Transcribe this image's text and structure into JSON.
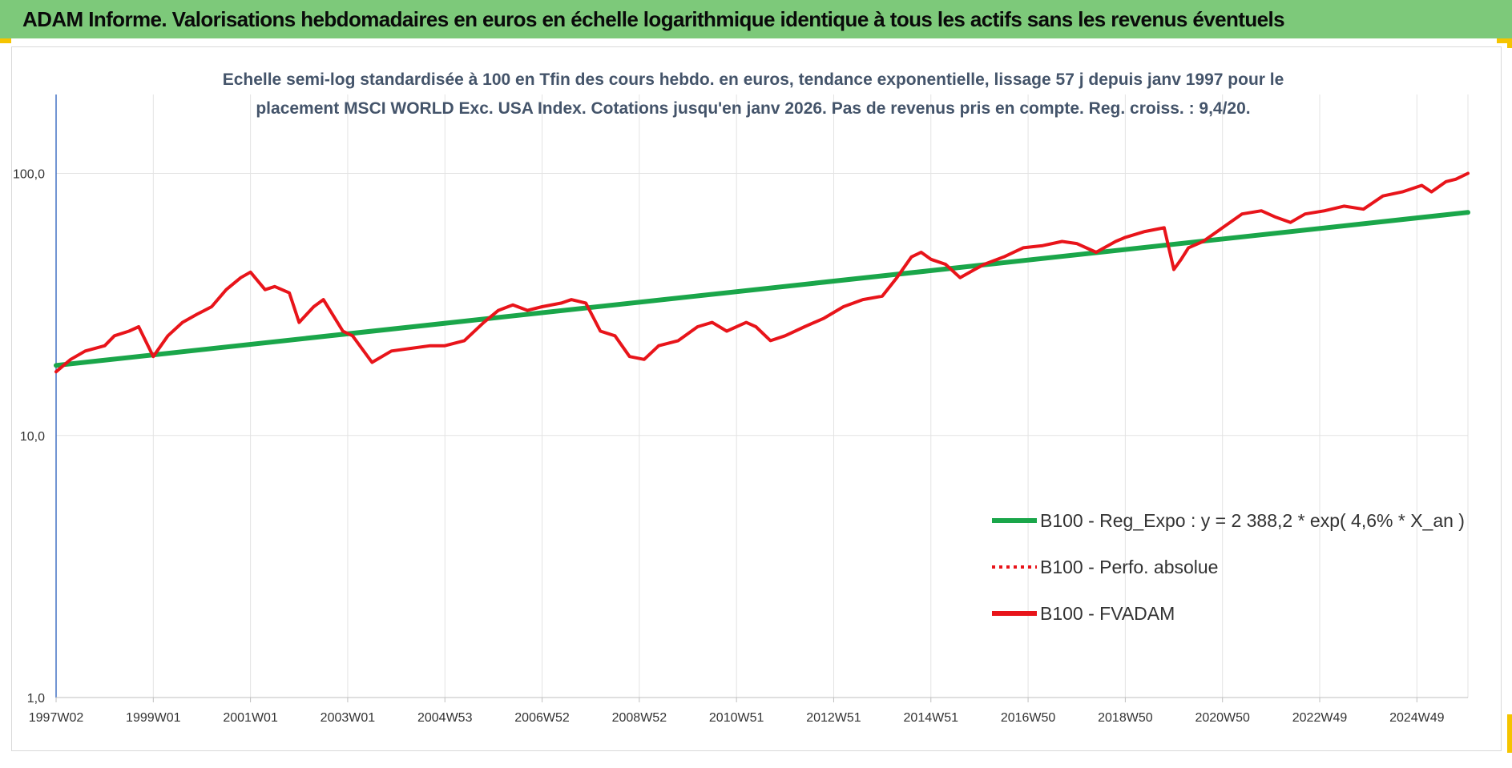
{
  "banner": {
    "title": "ADAM Informe. Valorisations hebdomadaires en euros en échelle logarithmique identique à tous les actifs sans les revenus éventuels"
  },
  "colors": {
    "banner_bg": "#7dc97a",
    "accent_corner": "#f5c400",
    "trend": "#1aa64a",
    "fvadam": "#e8141a",
    "title_text": "#44546a",
    "grid": "#e3e3e3",
    "y_axis": "#4472c4"
  },
  "chart_data": {
    "type": "line",
    "title_lines": [
      "Echelle semi-log standardisée à 100 en Tfin des cours hebdo. en euros, tendance exponentielle, lissage 57 j depuis janv 1997 pour le",
      "placement MSCI WORLD Exc. USA Index. Cotations jusqu'en janv 2026.  Pas de revenus pris en compte. Reg. croiss. : 9,4/20."
    ],
    "y_scale": "log",
    "ylim": [
      1,
      200
    ],
    "y_ticks": [
      1,
      10,
      100
    ],
    "y_tick_labels": [
      "1,0",
      "10,0",
      "100,0"
    ],
    "xlim": [
      1997.0,
      2026.05
    ],
    "x_ticks": [
      1997.0,
      1999.0,
      2001.0,
      2003.0,
      2005.0,
      2007.0,
      2009.0,
      2011.0,
      2013.0,
      2015.0,
      2017.0,
      2019.0,
      2021.0,
      2023.0,
      2025.0
    ],
    "x_tick_labels": [
      "1997W02",
      "1999W01",
      "2001W01",
      "2003W01",
      "2004W53",
      "2006W52",
      "2008W52",
      "2010W51",
      "2012W51",
      "2014W51",
      "2016W50",
      "2018W50",
      "2020W50",
      "2022W49",
      "2024W49"
    ],
    "grid": true,
    "legend_position": "bottom-right",
    "series": [
      {
        "name": "B100 - Reg_Expo : y = 2 388,2 * exp( 4,6% *  X_an )",
        "style": "solid",
        "color": "#1aa64a",
        "x": [
          1997.0,
          2026.05
        ],
        "y": [
          18.5,
          71.0
        ]
      },
      {
        "name": "B100 - Perfo. absolue",
        "style": "dotted",
        "color": "#e8141a",
        "x": [],
        "y": []
      },
      {
        "name": "B100 - FVADAM",
        "style": "solid",
        "color": "#e8141a",
        "x": [
          1997.0,
          1997.3,
          1997.6,
          1998.0,
          1998.2,
          1998.5,
          1998.7,
          1999.0,
          1999.3,
          1999.6,
          1999.9,
          2000.2,
          2000.5,
          2000.8,
          2001.0,
          2001.3,
          2001.5,
          2001.8,
          2002.0,
          2002.3,
          2002.5,
          2002.9,
          2003.1,
          2003.5,
          2003.9,
          2004.3,
          2004.7,
          2005.0,
          2005.4,
          2005.8,
          2006.1,
          2006.4,
          2006.7,
          2007.0,
          2007.4,
          2007.6,
          2007.9,
          2008.2,
          2008.5,
          2008.8,
          2009.1,
          2009.4,
          2009.8,
          2010.2,
          2010.5,
          2010.8,
          2011.2,
          2011.4,
          2011.7,
          2012.0,
          2012.4,
          2012.8,
          2013.2,
          2013.6,
          2014.0,
          2014.3,
          2014.6,
          2014.8,
          2015.0,
          2015.3,
          2015.6,
          2015.9,
          2016.1,
          2016.5,
          2016.9,
          2017.3,
          2017.7,
          2018.0,
          2018.4,
          2018.8,
          2019.0,
          2019.4,
          2019.8,
          2020.0,
          2020.15,
          2020.3,
          2020.6,
          2021.0,
          2021.4,
          2021.8,
          2022.1,
          2022.4,
          2022.7,
          2023.1,
          2023.5,
          2023.9,
          2024.3,
          2024.7,
          2025.1,
          2025.3,
          2025.6,
          2025.8,
          2026.05
        ],
        "y": [
          17.5,
          19.5,
          21,
          22,
          24,
          25,
          26,
          20,
          24,
          27,
          29,
          31,
          36,
          40,
          42,
          36,
          37,
          35,
          27,
          31,
          33,
          25,
          24,
          19,
          21,
          21.5,
          22,
          22,
          23,
          27,
          30,
          31.5,
          30,
          31,
          32,
          33,
          32,
          25,
          24,
          20,
          19.5,
          22,
          23,
          26,
          27,
          25,
          27,
          26,
          23,
          24,
          26,
          28,
          31,
          33,
          34,
          40,
          48,
          50,
          47,
          45,
          40,
          43,
          45,
          48,
          52,
          53,
          55,
          54,
          50,
          55,
          57,
          60,
          62,
          43,
          47,
          52,
          55,
          62,
          70,
          72,
          68,
          65,
          70,
          72,
          75,
          73,
          82,
          85,
          90,
          85,
          93,
          95,
          100
        ]
      }
    ]
  }
}
